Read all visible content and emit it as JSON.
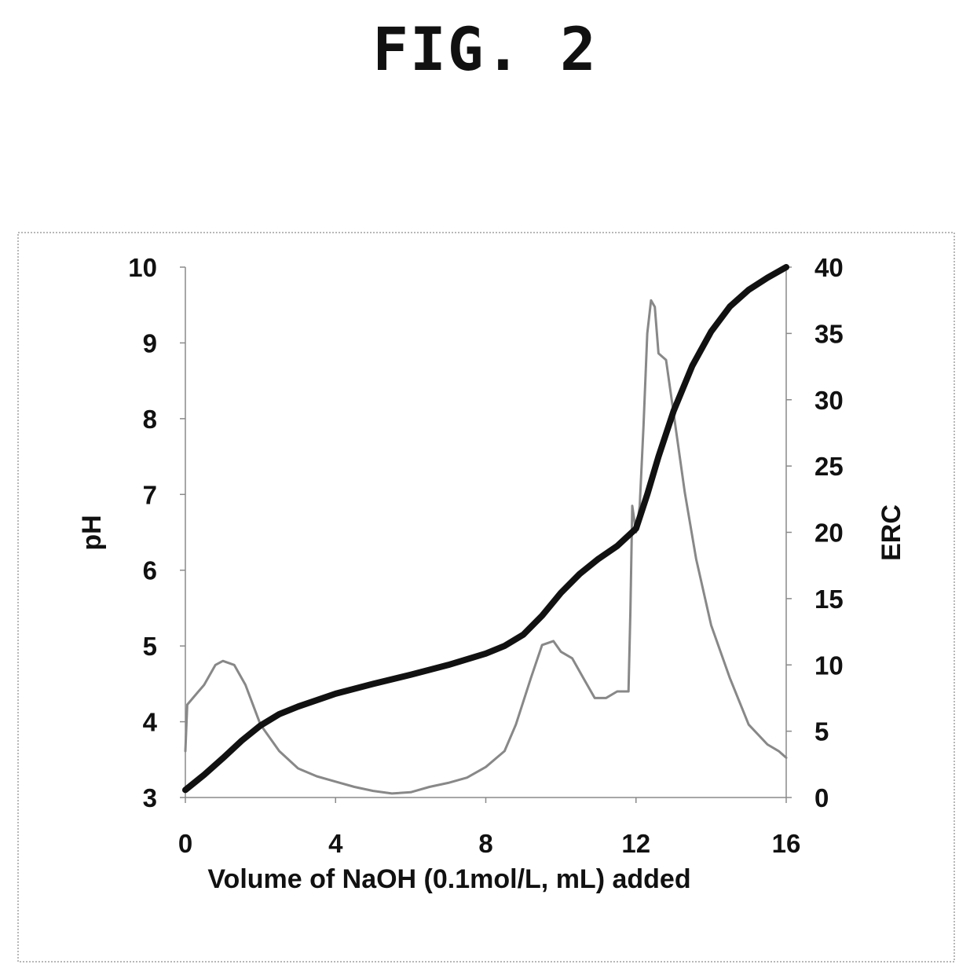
{
  "figure": {
    "title": "FIG. 2"
  },
  "chart_data": {
    "type": "line",
    "xlabel": "Volume of NaOH (0.1mol/L, mL) added",
    "ylabel": "pH",
    "y2label": "ERC",
    "xlim": [
      0,
      16
    ],
    "ylim": [
      3,
      10
    ],
    "y2lim": [
      0,
      40
    ],
    "xticks": [
      "0",
      "4",
      "8",
      "12",
      "16"
    ],
    "yticks": [
      "3",
      "4",
      "5",
      "6",
      "7",
      "8",
      "9",
      "10"
    ],
    "y2ticks": [
      "0",
      "5",
      "10",
      "15",
      "20",
      "25",
      "30",
      "35",
      "40"
    ],
    "grid": false,
    "legend": "none",
    "series": [
      {
        "axis": "left",
        "color": "#111111",
        "x": [
          0,
          0.5,
          1,
          1.5,
          2,
          2.5,
          3,
          4,
          5,
          6,
          7,
          8,
          8.5,
          9,
          9.5,
          10,
          10.5,
          11,
          11.5,
          12,
          12.3,
          12.6,
          13,
          13.5,
          14,
          14.5,
          15,
          15.5,
          16
        ],
        "y": [
          3.1,
          3.3,
          3.52,
          3.75,
          3.95,
          4.1,
          4.2,
          4.37,
          4.5,
          4.62,
          4.75,
          4.9,
          5.0,
          5.15,
          5.4,
          5.7,
          5.95,
          6.15,
          6.32,
          6.55,
          7.0,
          7.5,
          8.1,
          8.7,
          9.15,
          9.48,
          9.7,
          9.86,
          10.0
        ]
      },
      {
        "axis": "right",
        "color": "#888888",
        "x": [
          0,
          0.05,
          0.2,
          0.5,
          0.8,
          1.0,
          1.3,
          1.6,
          2.0,
          2.5,
          3.0,
          3.5,
          4.0,
          4.5,
          5.0,
          5.5,
          6.0,
          6.5,
          7.0,
          7.5,
          8.0,
          8.5,
          8.8,
          9.2,
          9.5,
          9.8,
          10.0,
          10.3,
          10.6,
          10.9,
          11.2,
          11.5,
          11.8,
          11.85,
          11.9,
          12.0,
          12.1,
          12.2,
          12.3,
          12.4,
          12.5,
          12.6,
          12.8,
          13.0,
          13.3,
          13.6,
          14.0,
          14.5,
          15.0,
          15.5,
          15.8,
          16.0
        ],
        "y": [
          3.5,
          7,
          7.5,
          8.5,
          10,
          10.3,
          10,
          8.5,
          5.5,
          3.5,
          2.2,
          1.6,
          1.2,
          0.8,
          0.5,
          0.3,
          0.4,
          0.8,
          1.1,
          1.5,
          2.3,
          3.5,
          5.5,
          9,
          11.5,
          11.8,
          11,
          10.5,
          9,
          7.5,
          7.5,
          8,
          8,
          14,
          22,
          20,
          22,
          28,
          35,
          37.5,
          37,
          33.5,
          33,
          29,
          23,
          18,
          13,
          9,
          5.5,
          4,
          3.5,
          3
        ]
      }
    ]
  }
}
